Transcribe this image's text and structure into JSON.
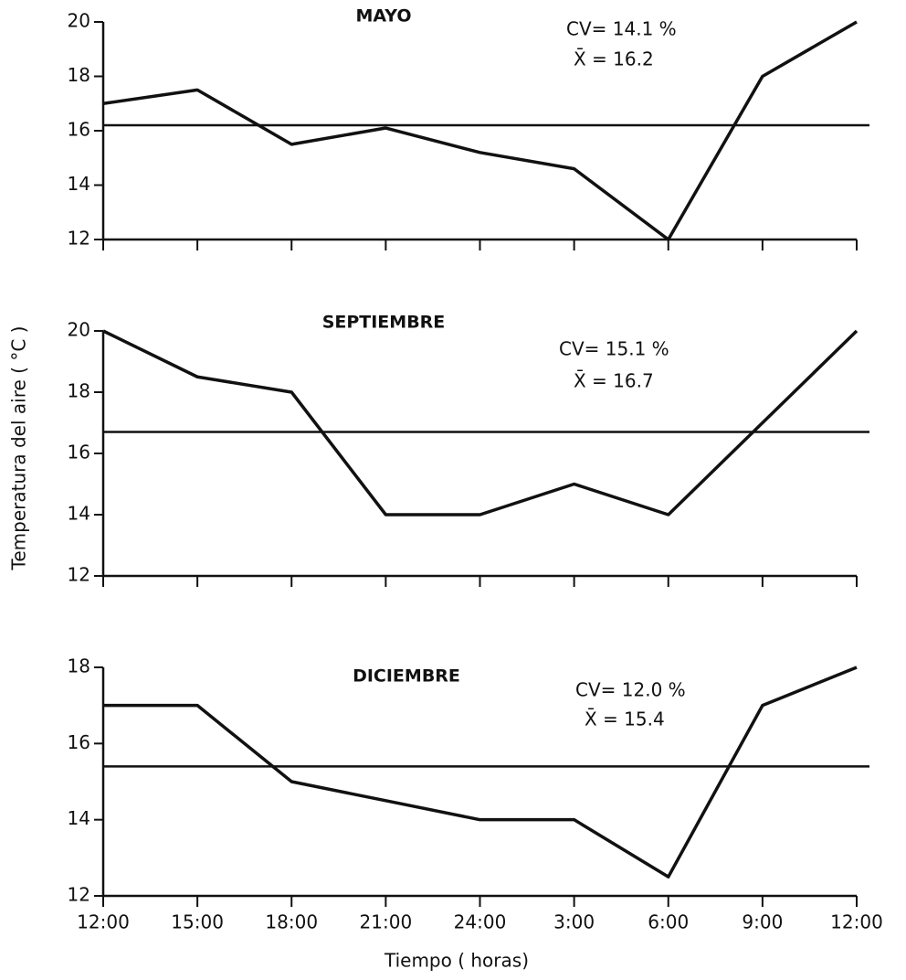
{
  "chart_data": [
    {
      "type": "line",
      "title": "MAYO",
      "cv": "CV= 14.1 %",
      "mean": {
        "value": 16.2,
        "label": "X̄ = 16.2"
      },
      "categories": [
        null,
        null,
        null,
        null,
        null,
        null,
        null,
        null,
        null
      ],
      "values": [
        17.0,
        17.5,
        15.5,
        16.1,
        15.2,
        14.6,
        12.0,
        18.0,
        20.0
      ],
      "ylim": [
        12,
        20
      ],
      "yticks": [
        12,
        14,
        16,
        18,
        20
      ],
      "color": "#111111"
    },
    {
      "type": "line",
      "title": "SEPTIEMBRE",
      "cv": "CV= 15.1 %",
      "mean": {
        "value": 16.7,
        "label": "X̄ = 16.7"
      },
      "y_label": "Temperatura del aire ( °C )",
      "categories": [
        null,
        null,
        null,
        null,
        null,
        null,
        null,
        null,
        null
      ],
      "values": [
        20.0,
        18.5,
        18.0,
        14.0,
        14.0,
        15.0,
        14.0,
        17.0,
        20.0
      ],
      "ylim": [
        12,
        20
      ],
      "yticks": [
        12,
        14,
        16,
        18,
        20
      ],
      "color": "#111111"
    },
    {
      "type": "line",
      "title": "DICIEMBRE",
      "cv": "CV= 12.0 %",
      "mean": {
        "value": 15.4,
        "label": "X̄ = 15.4"
      },
      "x_label": "Tiempo ( horas)",
      "categories": [
        "12:00",
        "15:00",
        "18:00",
        "21:00",
        "24:00",
        "3:00",
        "6:00",
        "9:00",
        "12:00"
      ],
      "values": [
        17.0,
        17.0,
        15.0,
        14.5,
        14.0,
        14.0,
        12.5,
        17.0,
        18.0
      ],
      "ylim": [
        12,
        18
      ],
      "yticks": [
        12,
        14,
        16,
        18
      ],
      "color": "#111111"
    }
  ]
}
